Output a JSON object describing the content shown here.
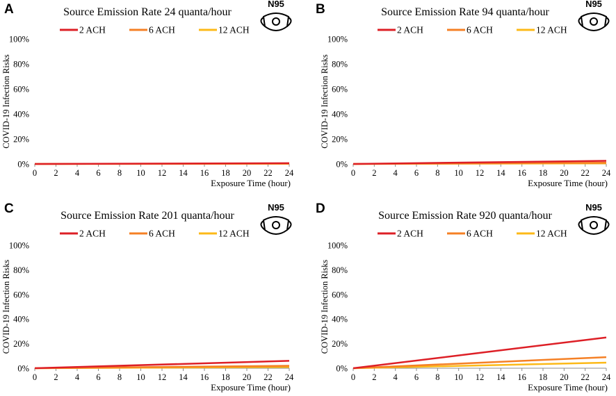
{
  "mask_label": "N95",
  "colors": {
    "2 ACH": "#dd1f26",
    "6 ACH": "#f58025",
    "12 ACH": "#fcb918",
    "axis": "#8c8c8c",
    "mask": "#000000"
  },
  "chart_data": [
    {
      "panel": "A",
      "type": "line",
      "title": "Source Emission Rate 24 quanta/hour",
      "xlabel": "Exposure Time (hour)",
      "ylabel": "COVID-19 Infection Risks",
      "xlim": [
        0,
        24
      ],
      "ylim": [
        0,
        100
      ],
      "xticks": [
        "0",
        "2",
        "4",
        "6",
        "8",
        "10",
        "12",
        "14",
        "16",
        "18",
        "20",
        "22",
        "24"
      ],
      "yticks": [
        "0%",
        "20%",
        "40%",
        "60%",
        "80%",
        "100%"
      ],
      "legend": [
        "2 ACH",
        "6 ACH",
        "12 ACH"
      ],
      "series": [
        {
          "name": "2 ACH",
          "x": [
            0,
            24
          ],
          "y": [
            0,
            0.6
          ]
        },
        {
          "name": "6 ACH",
          "x": [
            0,
            24
          ],
          "y": [
            0,
            0.3
          ]
        },
        {
          "name": "12 ACH",
          "x": [
            0,
            24
          ],
          "y": [
            0,
            0.15
          ]
        }
      ]
    },
    {
      "panel": "B",
      "type": "line",
      "title": "Source Emission Rate 94 quanta/hour",
      "xlabel": "Exposure Time (hour)",
      "ylabel": "COVID-19 Infection Risks",
      "xlim": [
        0,
        24
      ],
      "ylim": [
        0,
        100
      ],
      "xticks": [
        "0",
        "2",
        "4",
        "6",
        "8",
        "10",
        "12",
        "14",
        "16",
        "18",
        "20",
        "22",
        "24"
      ],
      "yticks": [
        "0%",
        "20%",
        "40%",
        "60%",
        "80%",
        "100%"
      ],
      "legend": [
        "2 ACH",
        "6 ACH",
        "12 ACH"
      ],
      "series": [
        {
          "name": "2 ACH",
          "x": [
            0,
            24
          ],
          "y": [
            0,
            2.5
          ]
        },
        {
          "name": "6 ACH",
          "x": [
            0,
            24
          ],
          "y": [
            0,
            1.0
          ]
        },
        {
          "name": "12 ACH",
          "x": [
            0,
            24
          ],
          "y": [
            0,
            0.5
          ]
        }
      ]
    },
    {
      "panel": "C",
      "type": "line",
      "title": "Source Emission Rate 201 quanta/hour",
      "xlabel": "Exposure Time (hour)",
      "ylabel": "COVID-19 Infection Risks",
      "xlim": [
        0,
        24
      ],
      "ylim": [
        0,
        100
      ],
      "xticks": [
        "0",
        "2",
        "4",
        "6",
        "8",
        "10",
        "12",
        "14",
        "16",
        "18",
        "20",
        "22",
        "24"
      ],
      "yticks": [
        "0%",
        "20%",
        "40%",
        "60%",
        "80%",
        "100%"
      ],
      "legend": [
        "2 ACH",
        "6 ACH",
        "12 ACH"
      ],
      "series": [
        {
          "name": "2 ACH",
          "x": [
            0,
            24
          ],
          "y": [
            0,
            6.0
          ]
        },
        {
          "name": "6 ACH",
          "x": [
            0,
            24
          ],
          "y": [
            0,
            2.0
          ]
        },
        {
          "name": "12 ACH",
          "x": [
            0,
            24
          ],
          "y": [
            0,
            1.0
          ]
        }
      ]
    },
    {
      "panel": "D",
      "type": "line",
      "title": "Source Emission Rate 920 quanta/hour",
      "xlabel": "Exposure Time (hour)",
      "ylabel": "COVID-19 Infection Risks",
      "xlim": [
        0,
        24
      ],
      "ylim": [
        0,
        100
      ],
      "xticks": [
        "0",
        "2",
        "4",
        "6",
        "8",
        "10",
        "12",
        "14",
        "16",
        "18",
        "20",
        "22",
        "24"
      ],
      "yticks": [
        "0%",
        "20%",
        "40%",
        "60%",
        "80%",
        "100%"
      ],
      "legend": [
        "2 ACH",
        "6 ACH",
        "12 ACH"
      ],
      "series": [
        {
          "name": "2 ACH",
          "x": [
            0,
            24
          ],
          "y": [
            0,
            25.0
          ]
        },
        {
          "name": "6 ACH",
          "x": [
            0,
            24
          ],
          "y": [
            0,
            9.0
          ]
        },
        {
          "name": "12 ACH",
          "x": [
            0,
            24
          ],
          "y": [
            0,
            4.5
          ]
        }
      ]
    }
  ]
}
